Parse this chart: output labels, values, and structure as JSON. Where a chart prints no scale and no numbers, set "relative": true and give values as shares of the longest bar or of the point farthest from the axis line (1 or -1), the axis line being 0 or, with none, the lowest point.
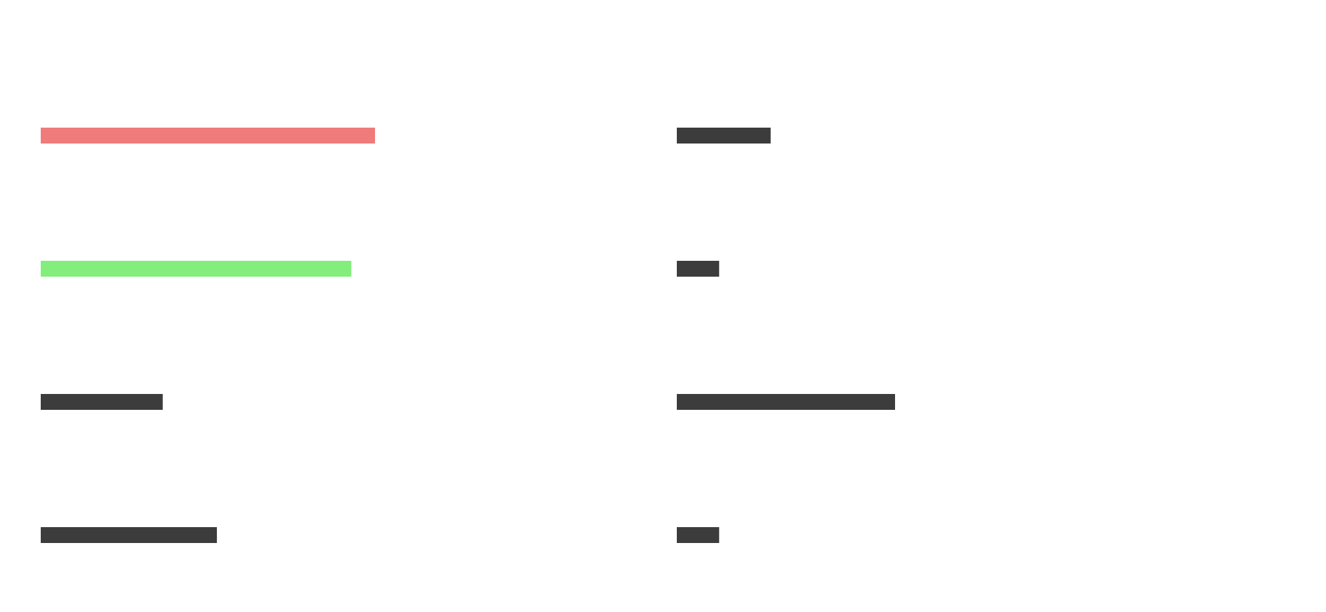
{
  "chart_data": [
    {
      "type": "bar",
      "orientation": "horizontal",
      "relative": true,
      "categories": [
        null,
        null,
        null,
        null
      ],
      "values": [
        1,
        0.929,
        0.365,
        0.527
      ],
      "colors": [
        "#ef7b7b",
        "#83ee7b",
        "#3c3c3c",
        "#3c3c3c"
      ]
    },
    {
      "type": "bar",
      "orientation": "horizontal",
      "relative": true,
      "categories": [
        null,
        null,
        null,
        null
      ],
      "values": [
        0.43,
        0.194,
        1,
        0.194
      ],
      "colors": [
        "#3c3c3c",
        "#3c3c3c",
        "#3c3c3c",
        "#3c3c3c"
      ]
    }
  ]
}
